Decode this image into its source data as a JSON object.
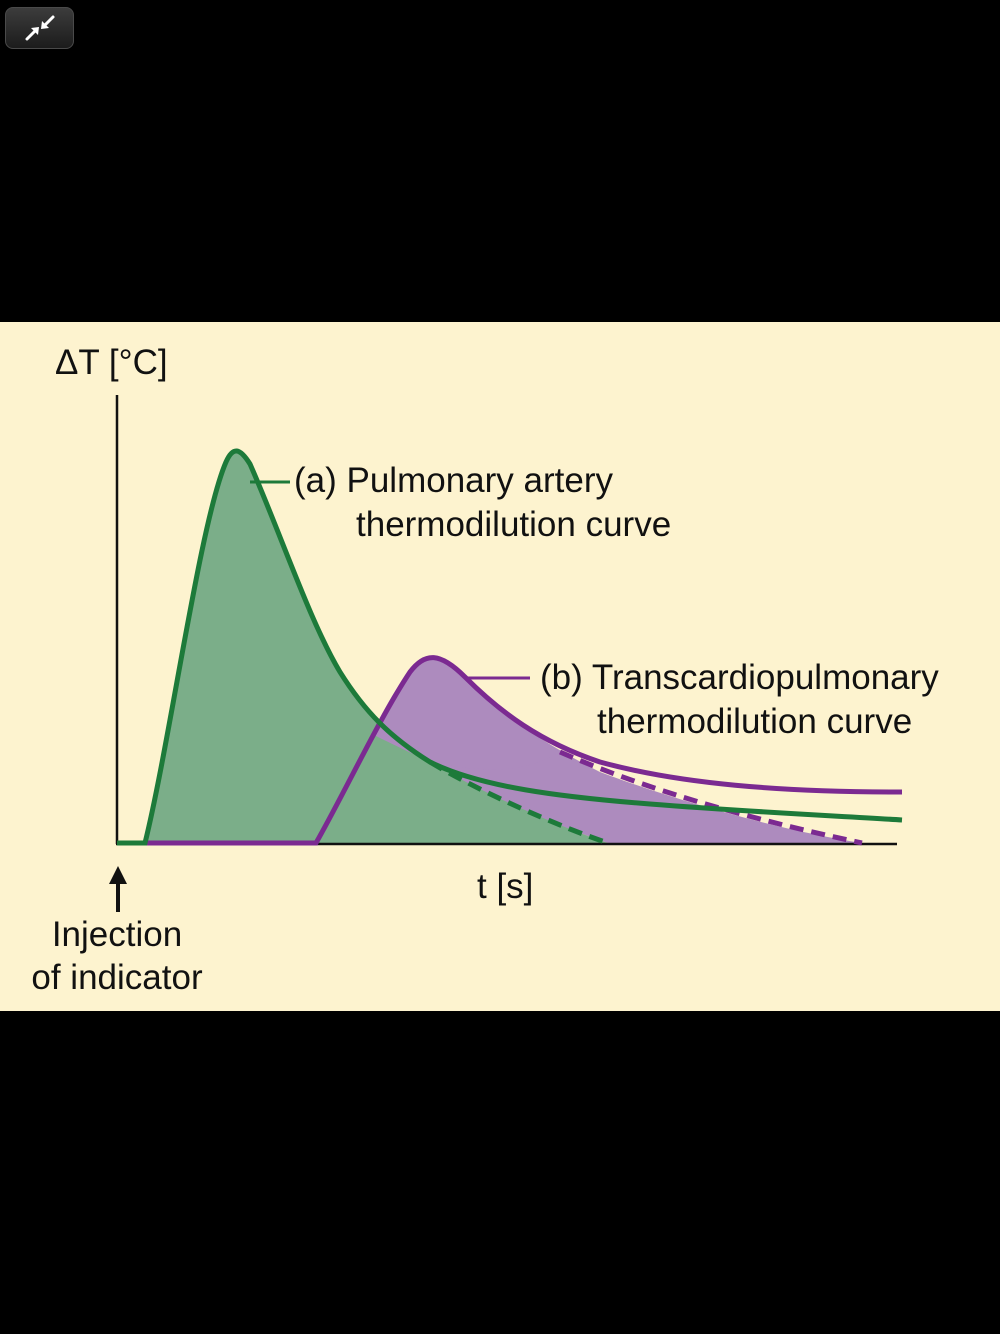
{
  "viewer": {
    "exit_fullscreen_icon": "exit-fullscreen-arrows-icon",
    "background": "#000000"
  },
  "figure": {
    "background": "#fdf3cf",
    "colors": {
      "pulmonary_fill": "#7bae89",
      "pulmonary_line": "#1d7a3a",
      "transcardio_fill": "#ad8bbe",
      "transcardio_line": "#7b2a91",
      "overlap_fill": "#f9c9a5",
      "axis": "#111111"
    },
    "y_axis_label": "ΔT [°C]",
    "x_axis_label": "t [s]",
    "annotation_a_line1": "(a) Pulmonary artery",
    "annotation_a_line2": "thermodilution curve",
    "annotation_b_line1": "(b) Transcardiopulmonary",
    "annotation_b_line2": "thermodilution curve",
    "injection_line1": "Injection",
    "injection_line2": "of indicator",
    "injection_arrow_icon": "up-arrow-icon"
  },
  "chart_data": {
    "type": "area",
    "xlabel": "t [s]",
    "ylabel": "ΔT [°C]",
    "grid": false,
    "series": [
      {
        "name": "(a) Pulmonary artery thermodilution curve",
        "style": "solid with dashed extrapolated tail"
      },
      {
        "name": "(b) Transcardiopulmonary thermodilution curve",
        "style": "solid with dashed extrapolated tail"
      }
    ]
  }
}
